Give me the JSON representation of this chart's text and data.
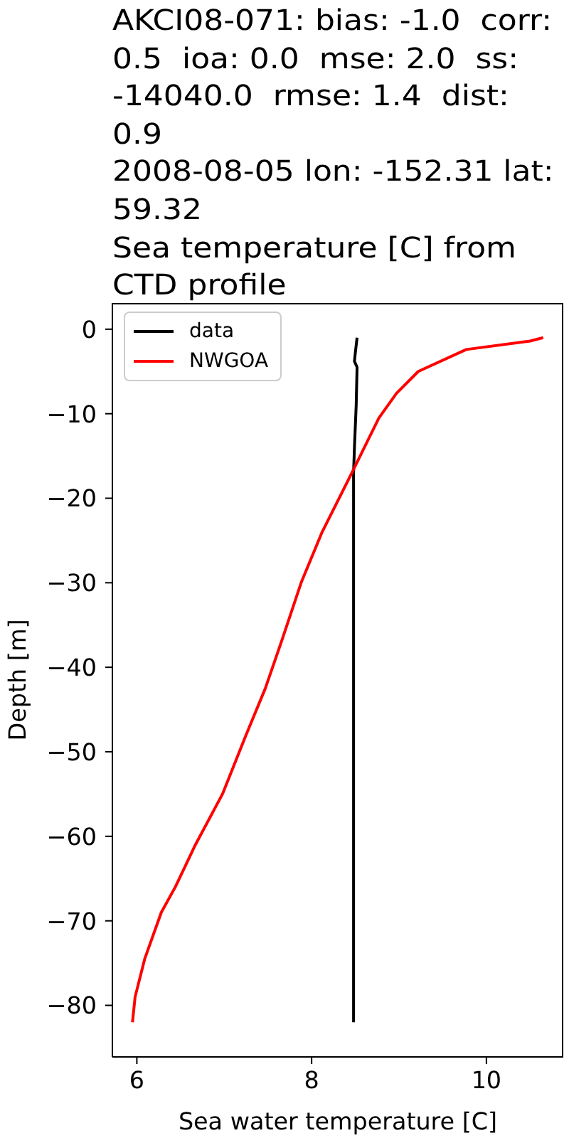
{
  "chart_data": {
    "type": "line",
    "title": "AKCI08-071: bias: -1.0  corr: 0.5  ioa: 0.0  mse: 2.0  ss: -14040.0  rmse: 1.4  dist: 0.9\n2008-08-05 lon: -152.31 lat: 59.32\nSea temperature [C] from CTD profile",
    "xlabel": "Sea water temperature [C]",
    "ylabel": "Depth [m]",
    "xlim": [
      5.72,
      10.88
    ],
    "xticks": [
      6,
      8,
      10
    ],
    "ylim": [
      -86.1,
      3.1
    ],
    "yticks": [
      -80,
      -70,
      -60,
      -50,
      -40,
      -30,
      -20,
      -10,
      0
    ],
    "legend": "top left",
    "series": [
      {
        "name": "data",
        "color": "#000000",
        "x": [
          8.52,
          8.5,
          8.49,
          8.52,
          8.51,
          8.49,
          8.48,
          8.48,
          8.48,
          8.48
        ],
        "values": [
          -1,
          -2.8,
          -3.8,
          -4.5,
          -9,
          -14,
          -17,
          -40,
          -60,
          -82
        ]
      },
      {
        "name": "NWGOA",
        "color": "#ff0000",
        "x": [
          10.65,
          10.5,
          9.77,
          9.22,
          8.97,
          8.77,
          8.46,
          8.12,
          7.88,
          7.66,
          7.47,
          7.25,
          6.98,
          6.67,
          6.44,
          6.28,
          6.09,
          5.98,
          5.95
        ],
        "values": [
          -1,
          -1.4,
          -2.4,
          -5.0,
          -7.6,
          -10.5,
          -17,
          -24,
          -30,
          -36.8,
          -42.5,
          -48,
          -55,
          -61,
          -66,
          -69,
          -74.5,
          -79,
          -82
        ]
      }
    ]
  }
}
